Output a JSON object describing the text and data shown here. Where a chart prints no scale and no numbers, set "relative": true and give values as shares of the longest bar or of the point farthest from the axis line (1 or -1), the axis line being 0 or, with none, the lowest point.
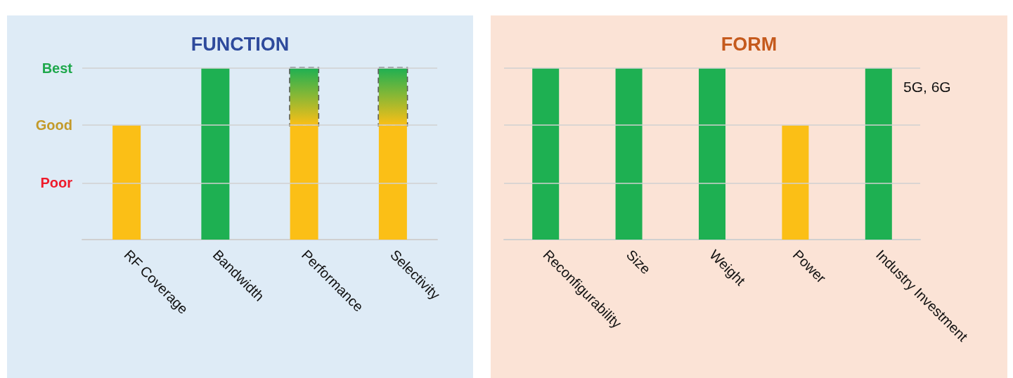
{
  "chart_data": [
    {
      "type": "bar",
      "title": "FUNCTION",
      "categories": [
        "RF Coverage",
        "Bandwidth",
        "Performance",
        "Selectivity"
      ],
      "stacked": true,
      "relative": true,
      "series": [
        {
          "values": [
            0.667,
            1,
            0.667,
            0.667
          ],
          "colors": [
            "#fbbf16",
            "#1eb052",
            "#fbbf16",
            "#fbbf16"
          ]
        },
        {
          "values": [
            null,
            null,
            0.333,
            0.333
          ],
          "color": "#1eb052",
          "line_style": "dashed"
        }
      ],
      "ref_lines": [
        {
          "axis": "y",
          "value": 1,
          "label": "Best",
          "color": "#d0d0d0"
        },
        {
          "axis": "y",
          "value": 0.667,
          "label": "Good",
          "color": "#d0d0d0"
        },
        {
          "axis": "y",
          "value": 0.333,
          "label": "Poor",
          "color": "#d0d0d0"
        }
      ]
    },
    {
      "type": "bar",
      "title": "FORM",
      "categories": [
        "Reconfigurability",
        "Size",
        "Weight",
        "Power",
        "Industry Investment"
      ],
      "relative": true,
      "series": [
        {
          "values": [
            1,
            1,
            1,
            0.667,
            1
          ],
          "colors": [
            "#1eb052",
            "#1eb052",
            "#1eb052",
            "#fbbf16",
            "#1eb052"
          ]
        }
      ],
      "ref_lines": [
        {
          "axis": "y",
          "value": 1,
          "color": "#d0d0d0"
        },
        {
          "axis": "y",
          "value": 0.667,
          "color": "#d0d0d0"
        },
        {
          "axis": "y",
          "value": 0.333,
          "color": "#d0d0d0"
        }
      ],
      "annotations": [
        "5G, 6G"
      ]
    }
  ]
}
